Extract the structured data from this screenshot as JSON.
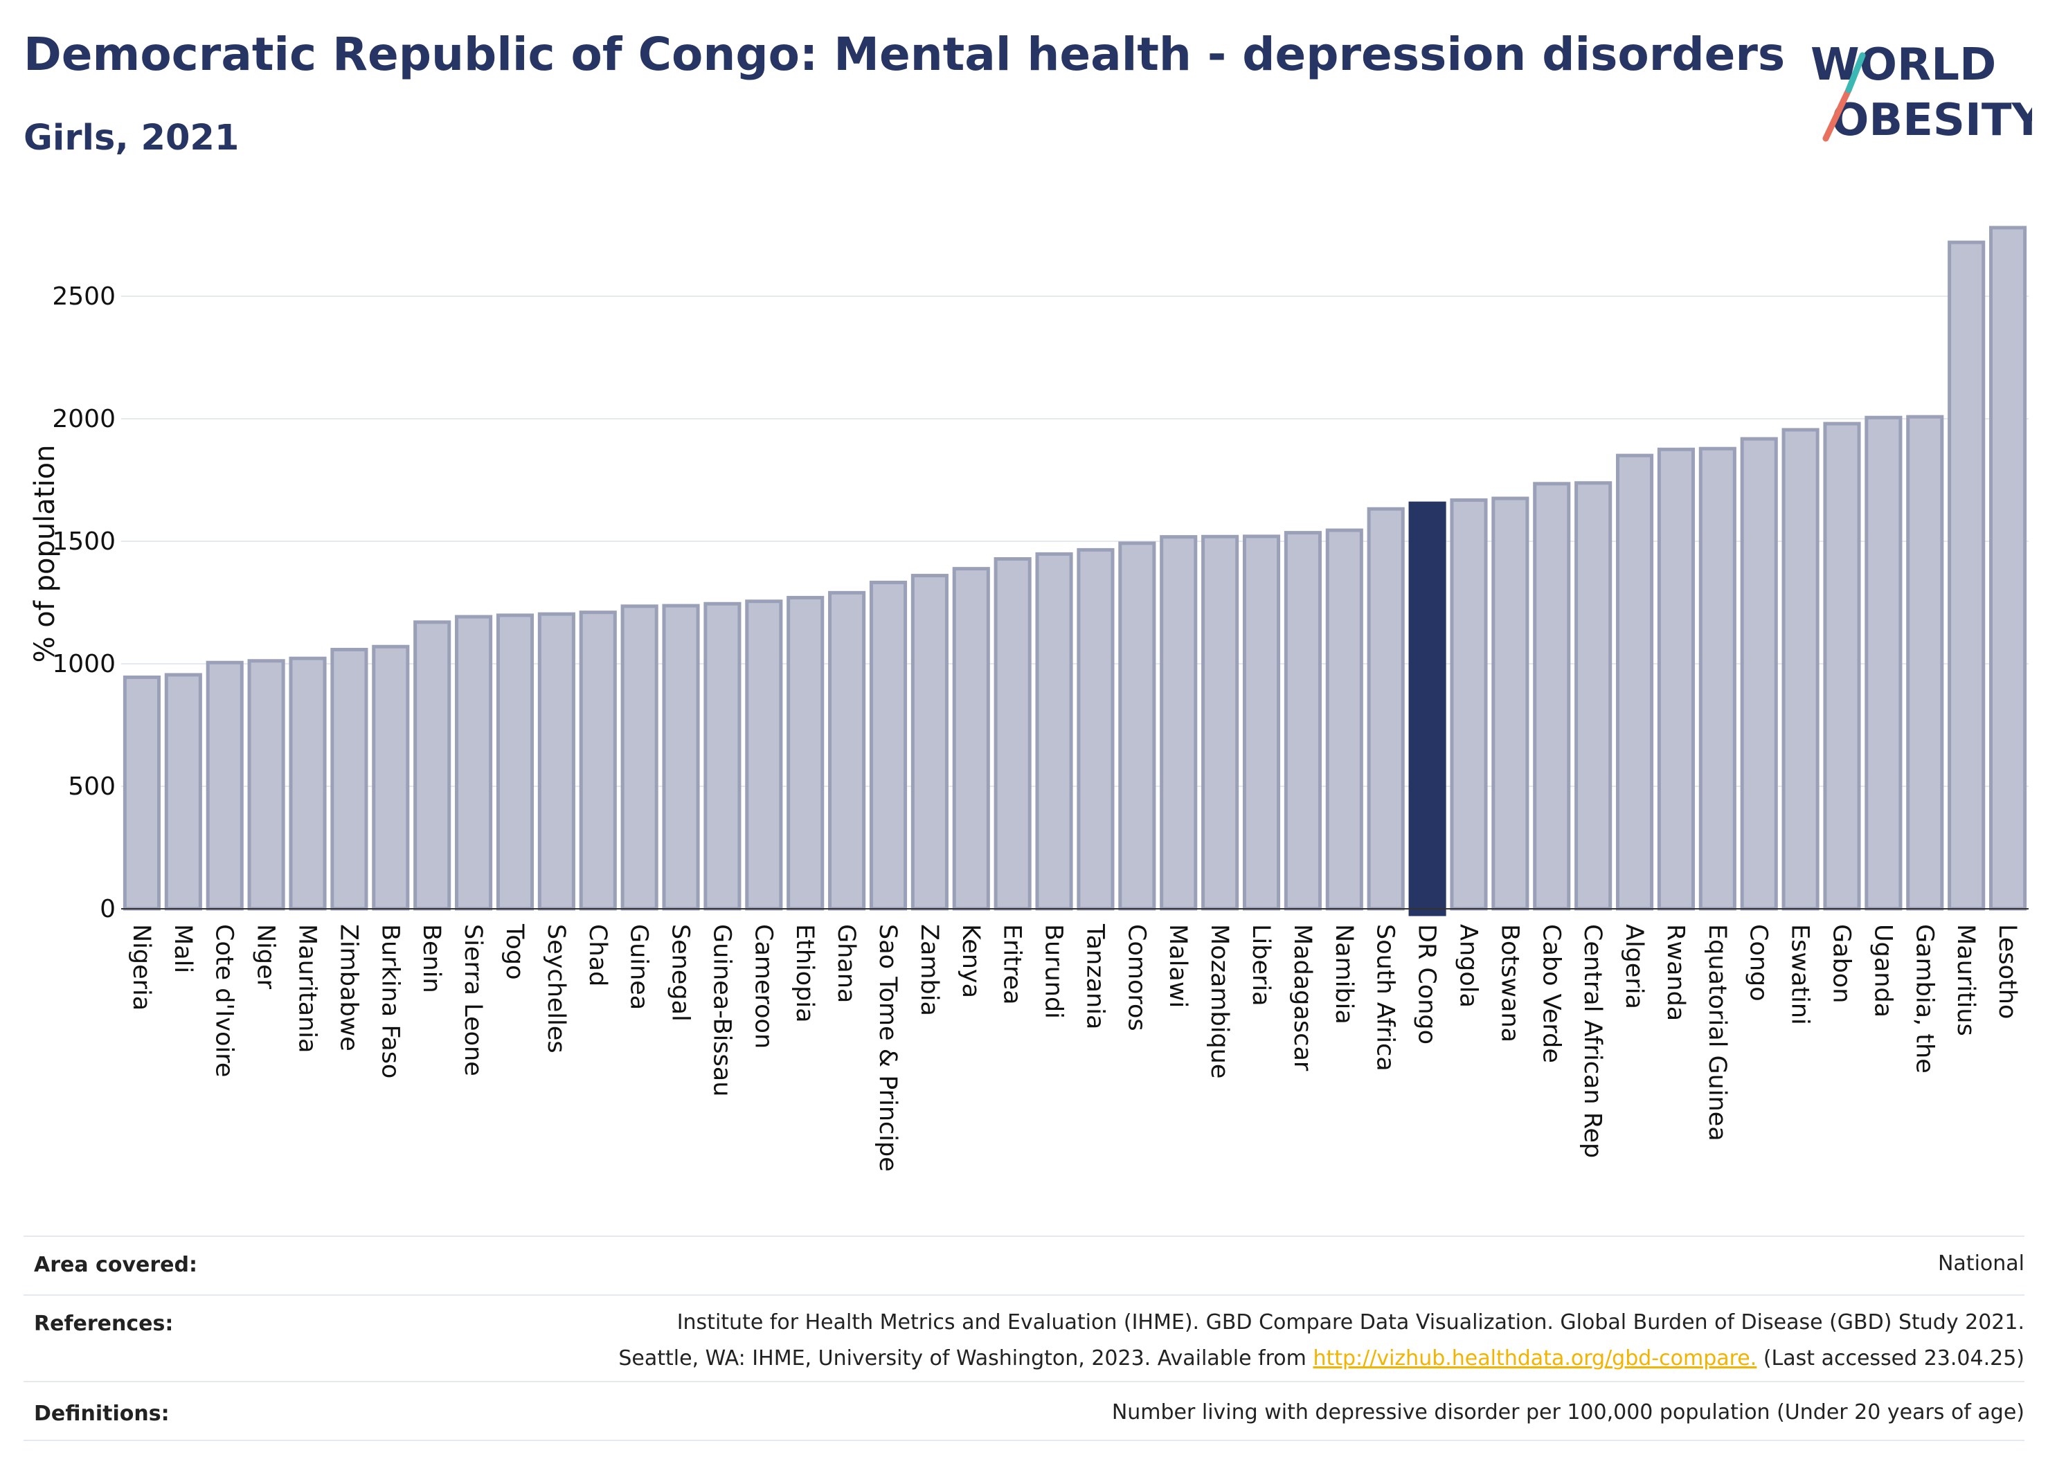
{
  "title": "Democratic Republic of Congo: Mental health - depression disorders",
  "subtitle": "Girls, 2021",
  "logo": {
    "line1": "WORLD",
    "line2": "OBESITY"
  },
  "colors": {
    "bar": "#bdc1d1",
    "bar_border": "#9aa0b8",
    "highlight": "#263563",
    "title": "#263563"
  },
  "chart_data": {
    "type": "bar",
    "ylabel": "% of population",
    "ylim": [
      0,
      2850
    ],
    "yticks": [
      0,
      500,
      1000,
      1500,
      2000,
      2500
    ],
    "grid": true,
    "highlight": "DR Congo",
    "categories": [
      "Nigeria",
      "Mali",
      "Cote d'Ivoire",
      "Niger",
      "Mauritania",
      "Zimbabwe",
      "Burkina Faso",
      "Benin",
      "Sierra Leone",
      "Togo",
      "Seychelles",
      "Chad",
      "Guinea",
      "Senegal",
      "Guinea-Bissau",
      "Cameroon",
      "Ethiopia",
      "Ghana",
      "Sao Tome & Principe",
      "Zambia",
      "Kenya",
      "Eritrea",
      "Burundi",
      "Tanzania",
      "Comoros",
      "Malawi",
      "Mozambique",
      "Liberia",
      "Madagascar",
      "Namibia",
      "South Africa",
      "DR Congo",
      "Angola",
      "Botswana",
      "Cabo Verde",
      "Central African Rep",
      "Algeria",
      "Rwanda",
      "Equatorial Guinea",
      "Congo",
      "Eswatini",
      "Gabon",
      "Uganda",
      "Gambia, the",
      "Mauritius",
      "Lesotho"
    ],
    "values": [
      945,
      955,
      1005,
      1012,
      1022,
      1058,
      1070,
      1170,
      1192,
      1198,
      1203,
      1210,
      1235,
      1237,
      1245,
      1255,
      1270,
      1290,
      1332,
      1360,
      1388,
      1428,
      1448,
      1465,
      1492,
      1518,
      1519,
      1520,
      1535,
      1545,
      1632,
      1655,
      1668,
      1675,
      1735,
      1738,
      1850,
      1875,
      1878,
      1918,
      1955,
      1980,
      2005,
      2008,
      2720,
      2780
    ]
  },
  "info": {
    "area_label": "Area covered:",
    "area_value": "National",
    "ref_label": "References:",
    "ref_line1": "Institute for Health Metrics and Evaluation (IHME). GBD Compare Data Visualization. Global Burden of Disease (GBD) Study 2021.",
    "ref_line2_pre": "Seattle, WA: IHME, University of Washington, 2023. Available from",
    "ref_link": "http://vizhub.healthdata.org/gbd-compare.",
    "ref_line2_post": "(Last accessed 23.04.25)",
    "def_label": "Definitions:",
    "def_value": "Number living with depressive disorder per 100,000 population (Under 20 years of age)"
  }
}
